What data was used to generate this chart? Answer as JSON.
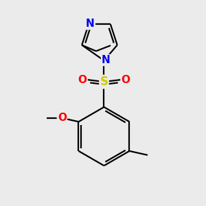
{
  "background_color": "#ebebeb",
  "bond_color": "#000000",
  "bond_width": 1.6,
  "atom_colors": {
    "N": "#0000ee",
    "O": "#ff0000",
    "S": "#cccc00",
    "C": "#000000"
  },
  "font_size_atom": 11,
  "fig_width": 3.0,
  "fig_height": 3.0,
  "dpi": 100
}
